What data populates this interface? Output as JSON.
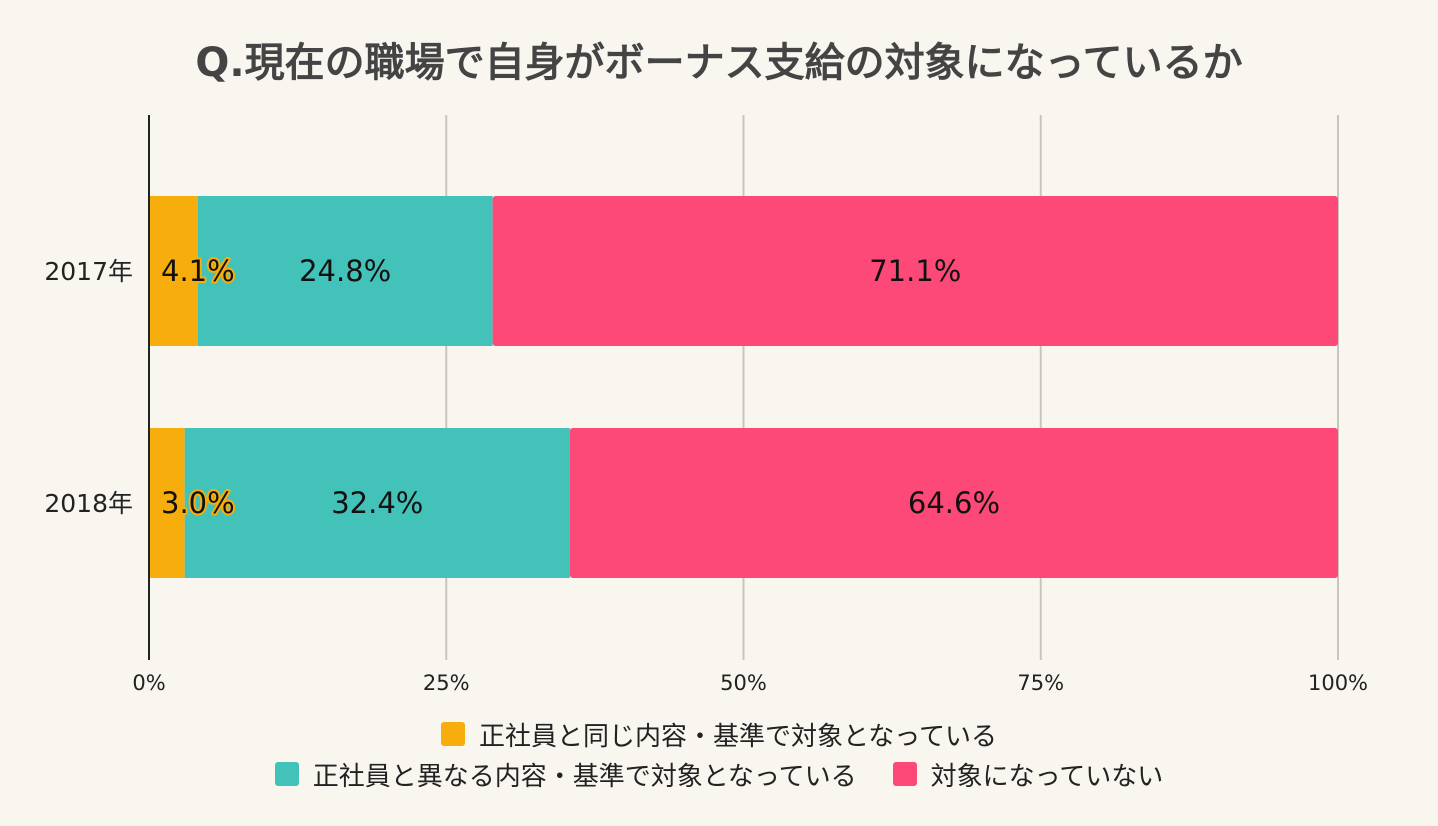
{
  "chart_data": {
    "type": "bar",
    "orientation": "horizontal",
    "stacked": true,
    "title": "Q.現在の職場で自身がボーナス支給の対象になっているか",
    "categories": [
      "2017年",
      "2018年"
    ],
    "series": [
      {
        "name": "正社員と同じ内容・基準で対象となっている",
        "color": "#f7ae0d",
        "values": [
          4.1,
          3.0
        ],
        "labels": [
          "4.1%",
          "3.0%"
        ]
      },
      {
        "name": "正社員と異なる内容・基準で対象となっている",
        "color": "#42c2b8",
        "values": [
          24.8,
          32.4
        ],
        "labels": [
          "24.8%",
          "32.4%"
        ]
      },
      {
        "name": "対象になっていない",
        "color": "#fd4978",
        "values": [
          71.1,
          64.6
        ],
        "labels": [
          "71.1%",
          "64.6%"
        ]
      }
    ],
    "xlim": [
      0,
      100
    ],
    "xticks": [
      0,
      25,
      50,
      75,
      100
    ],
    "xtick_labels": [
      "0%",
      "25%",
      "50%",
      "75%",
      "100%"
    ],
    "grid": true,
    "legend_position": "bottom"
  }
}
